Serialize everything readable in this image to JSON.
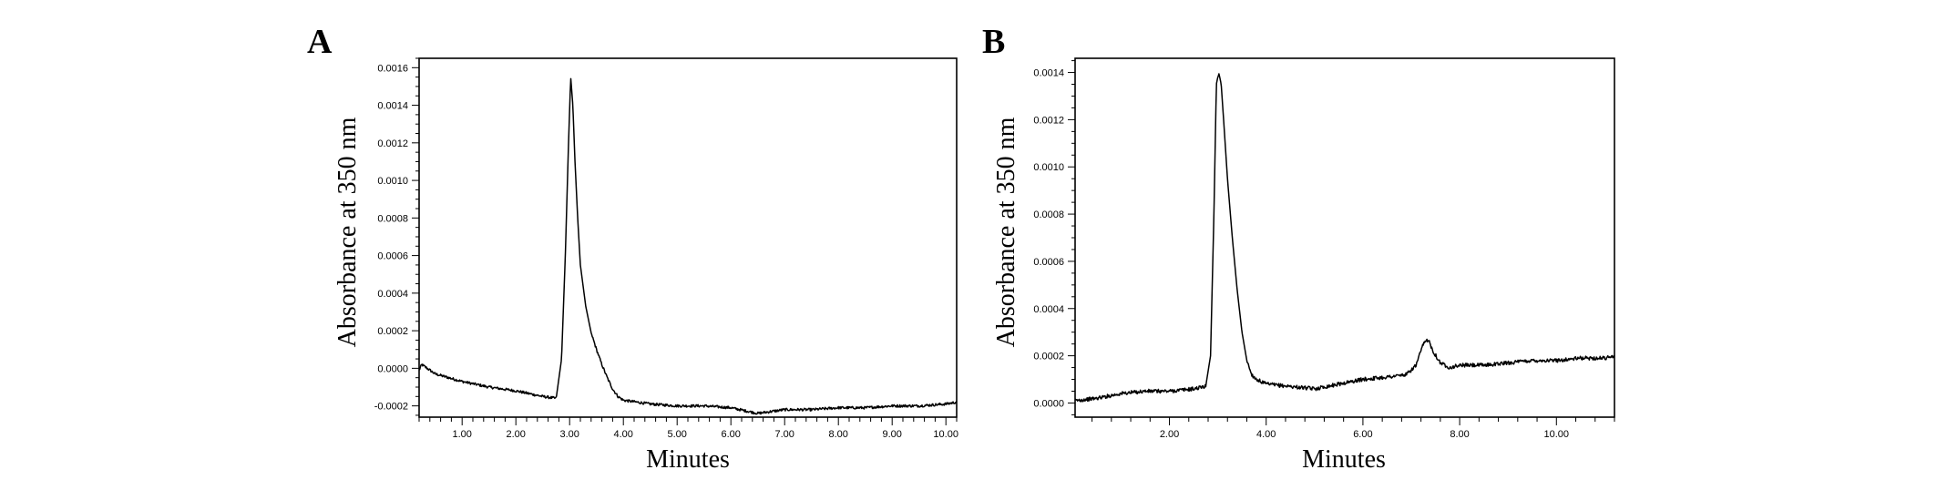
{
  "chart_data": [
    {
      "type": "line",
      "panel": "A",
      "xlabel": "Minutes",
      "ylabel": "Absorbance at 350 nm",
      "xlim": [
        0.2,
        10.2
      ],
      "ylim": [
        -0.00026,
        0.00165
      ],
      "xticks": [
        1.0,
        2.0,
        3.0,
        4.0,
        5.0,
        6.0,
        7.0,
        8.0,
        9.0,
        10.0
      ],
      "xtick_labels": [
        "1.00",
        "2.00",
        "3.00",
        "4.00",
        "5.00",
        "6.00",
        "7.00",
        "8.00",
        "9.00",
        "10.00"
      ],
      "yticks": [
        -0.0002,
        0.0,
        0.0002,
        0.0004,
        0.0006,
        0.0008,
        0.001,
        0.0012,
        0.0014,
        0.0016
      ],
      "ytick_labels": [
        "-0.0002",
        "0.0000",
        "0.0002",
        "0.0004",
        "0.0006",
        "0.0008",
        "0.0010",
        "0.0012",
        "0.0014",
        "0.0016"
      ],
      "grid": false,
      "series": [
        {
          "x": [
            0.2,
            0.25,
            0.5,
            1.0,
            1.5,
            2.0,
            2.5,
            2.75,
            2.85,
            2.92,
            2.98,
            3.02,
            3.06,
            3.1,
            3.15,
            3.2,
            3.3,
            3.4,
            3.5,
            3.6,
            3.7,
            3.8,
            3.9,
            4.0,
            4.5,
            5.0,
            5.5,
            6.0,
            6.5,
            7.0,
            7.5,
            8.0,
            8.5,
            9.0,
            9.5,
            10.0,
            10.2
          ],
          "y": [
            -1e-05,
            2e-05,
            -3e-05,
            -7e-05,
            -0.0001,
            -0.00012,
            -0.00015,
            -0.00016,
            5e-05,
            0.0006,
            0.0012,
            0.00155,
            0.0014,
            0.0011,
            0.0008,
            0.00055,
            0.00033,
            0.00019,
            0.0001,
            2e-05,
            -5e-05,
            -0.00011,
            -0.00015,
            -0.00017,
            -0.00019,
            -0.0002,
            -0.0002,
            -0.00021,
            -0.00024,
            -0.00022,
            -0.00022,
            -0.00021,
            -0.00021,
            -0.0002,
            -0.0002,
            -0.00019,
            -0.00018
          ]
        }
      ]
    },
    {
      "type": "line",
      "panel": "B",
      "xlabel": "Minutes",
      "ylabel": "Absorbance at 350 nm",
      "xlim": [
        0.05,
        11.2
      ],
      "ylim": [
        -6e-05,
        0.00146
      ],
      "xticks": [
        2.0,
        4.0,
        6.0,
        8.0,
        10.0
      ],
      "xtick_labels": [
        "2.00",
        "4.00",
        "6.00",
        "8.00",
        "10.00"
      ],
      "yticks": [
        0.0,
        0.0002,
        0.0004,
        0.0006,
        0.0008,
        0.001,
        0.0012,
        0.0014
      ],
      "ytick_labels": [
        "0.0000",
        "0.0002",
        "0.0004",
        "0.0006",
        "0.0008",
        "0.0010",
        "0.0012",
        "0.0014"
      ],
      "grid": false,
      "series": [
        {
          "x": [
            0.05,
            0.5,
            1.0,
            1.5,
            2.0,
            2.5,
            2.75,
            2.85,
            2.92,
            2.97,
            3.02,
            3.07,
            3.12,
            3.2,
            3.3,
            3.4,
            3.5,
            3.6,
            3.7,
            3.8,
            4.0,
            4.5,
            5.0,
            5.5,
            6.0,
            6.5,
            6.9,
            7.1,
            7.25,
            7.35,
            7.45,
            7.6,
            7.8,
            8.0,
            8.5,
            9.0,
            9.5,
            10.0,
            10.5,
            11.0,
            11.2
          ],
          "y": [
            1e-05,
            2e-05,
            4e-05,
            5e-05,
            5e-05,
            6e-05,
            7e-05,
            0.0002,
            0.0008,
            0.00135,
            0.0014,
            0.00135,
            0.0012,
            0.00095,
            0.0007,
            0.00048,
            0.0003,
            0.00018,
            0.00012,
            0.0001,
            8e-05,
            7e-05,
            6e-05,
            8e-05,
            0.0001,
            0.00011,
            0.00012,
            0.00016,
            0.00025,
            0.00027,
            0.00022,
            0.00017,
            0.00015,
            0.00016,
            0.00016,
            0.00017,
            0.00018,
            0.00018,
            0.00019,
            0.00019,
            0.0002
          ]
        }
      ]
    }
  ]
}
